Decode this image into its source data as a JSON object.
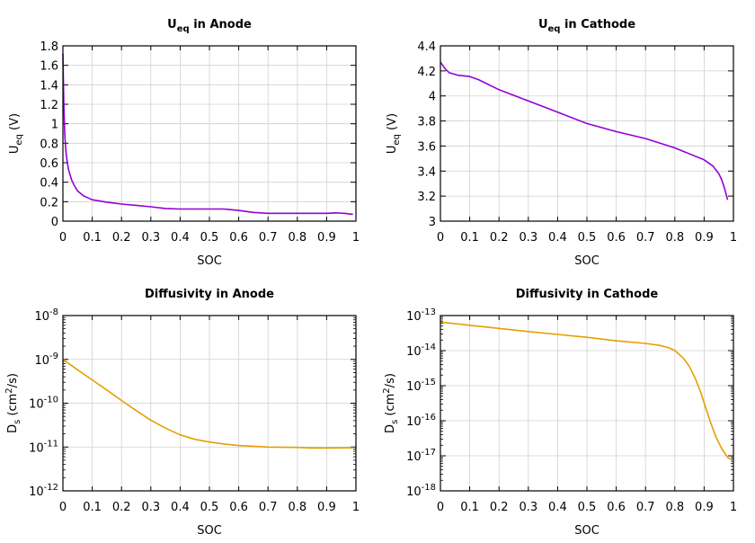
{
  "chart_data": [
    {
      "type": "line",
      "title": {
        "main": "U",
        "sub": "eq",
        "rest": " in Anode"
      },
      "xlabel": "SOC",
      "ylabel": {
        "main": "U",
        "sub": "eq",
        "rest": " (V)"
      },
      "xlim": [
        0,
        1
      ],
      "ylim": [
        0,
        1.8
      ],
      "yscale": "linear",
      "grid": true,
      "xticks": [
        "0",
        "0.1",
        "0.2",
        "0.3",
        "0.4",
        "0.5",
        "0.6",
        "0.7",
        "0.8",
        "0.9",
        "1"
      ],
      "yticks": [
        "0",
        "0.2",
        "0.4",
        "0.6",
        "0.8",
        "1",
        "1.2",
        "1.4",
        "1.6",
        "1.8"
      ],
      "color": "#9400d3",
      "x": [
        0,
        0.003,
        0.006,
        0.01,
        0.015,
        0.02,
        0.03,
        0.04,
        0.05,
        0.07,
        0.1,
        0.15,
        0.2,
        0.25,
        0.3,
        0.35,
        0.4,
        0.45,
        0.5,
        0.55,
        0.6,
        0.65,
        0.7,
        0.8,
        0.9,
        0.93,
        0.96,
        0.99
      ],
      "y": [
        1.72,
        1.2,
        0.9,
        0.72,
        0.6,
        0.52,
        0.42,
        0.36,
        0.31,
        0.26,
        0.22,
        0.195,
        0.175,
        0.162,
        0.148,
        0.13,
        0.125,
        0.125,
        0.125,
        0.125,
        0.11,
        0.09,
        0.08,
        0.08,
        0.08,
        0.085,
        0.08,
        0.07
      ]
    },
    {
      "type": "line",
      "title": {
        "main": "U",
        "sub": "eq",
        "rest": " in Cathode"
      },
      "xlabel": "SOC",
      "ylabel": {
        "main": "U",
        "sub": "eq",
        "rest": " (V)"
      },
      "xlim": [
        0,
        1
      ],
      "ylim": [
        3,
        4.4
      ],
      "yscale": "linear",
      "grid": true,
      "xticks": [
        "0",
        "0.1",
        "0.2",
        "0.3",
        "0.4",
        "0.5",
        "0.6",
        "0.7",
        "0.8",
        "0.9",
        "1"
      ],
      "yticks": [
        "3",
        "3.2",
        "3.4",
        "3.6",
        "3.8",
        "4",
        "4.2",
        "4.4"
      ],
      "color": "#9400d3",
      "x": [
        0,
        0.015,
        0.03,
        0.06,
        0.1,
        0.13,
        0.2,
        0.3,
        0.4,
        0.5,
        0.6,
        0.7,
        0.8,
        0.9,
        0.93,
        0.95,
        0.96,
        0.97,
        0.98
      ],
      "y": [
        4.27,
        4.22,
        4.185,
        4.165,
        4.155,
        4.13,
        4.05,
        3.96,
        3.87,
        3.78,
        3.715,
        3.66,
        3.585,
        3.49,
        3.44,
        3.38,
        3.33,
        3.26,
        3.17
      ]
    },
    {
      "type": "line",
      "title": {
        "main": "Diffusivity in Anode",
        "sub": "",
        "rest": ""
      },
      "xlabel": "SOC",
      "ylabel": {
        "main": "D",
        "sub": "s",
        "rest": " (cm",
        "sup": "2",
        "rest2": "/s)"
      },
      "xlim": [
        0,
        1
      ],
      "ylim": [
        1e-12,
        1e-08
      ],
      "yscale": "log",
      "grid": true,
      "xticks": [
        "0",
        "0.1",
        "0.2",
        "0.3",
        "0.4",
        "0.5",
        "0.6",
        "0.7",
        "0.8",
        "0.9",
        "1"
      ],
      "yticks": [
        {
          "base": "10",
          "exp": "-12"
        },
        {
          "base": "10",
          "exp": "-11"
        },
        {
          "base": "10",
          "exp": "-10"
        },
        {
          "base": "10",
          "exp": "-9"
        },
        {
          "base": "10",
          "exp": "-8"
        }
      ],
      "color": "#e69f00",
      "x": [
        0,
        0.05,
        0.1,
        0.15,
        0.2,
        0.25,
        0.3,
        0.35,
        0.4,
        0.45,
        0.5,
        0.55,
        0.6,
        0.7,
        0.8,
        0.85,
        0.9,
        0.99
      ],
      "y": [
        1e-09,
        5.8e-10,
        3.4e-10,
        2e-10,
        1.15e-10,
        6.8e-11,
        4.1e-11,
        2.7e-11,
        1.9e-11,
        1.5e-11,
        1.3e-11,
        1.17e-11,
        1.08e-11,
        1e-11,
        9.8e-12,
        9.5e-12,
        9.5e-12,
        9.6e-12
      ]
    },
    {
      "type": "line",
      "title": {
        "main": "Diffusivity in Cathode",
        "sub": "",
        "rest": ""
      },
      "xlabel": "SOC",
      "ylabel": {
        "main": "D",
        "sub": "s",
        "rest": " (cm",
        "sup": "2",
        "rest2": "/s)"
      },
      "xlim": [
        0,
        1
      ],
      "ylim": [
        1e-18,
        1e-13
      ],
      "yscale": "log",
      "grid": true,
      "xticks": [
        "0",
        "0.1",
        "0.2",
        "0.3",
        "0.4",
        "0.5",
        "0.6",
        "0.7",
        "0.8",
        "0.9",
        "1"
      ],
      "yticks": [
        {
          "base": "10",
          "exp": "-18"
        },
        {
          "base": "10",
          "exp": "-17"
        },
        {
          "base": "10",
          "exp": "-16"
        },
        {
          "base": "10",
          "exp": "-15"
        },
        {
          "base": "10",
          "exp": "-14"
        },
        {
          "base": "10",
          "exp": "-13"
        }
      ],
      "color": "#e69f00",
      "x": [
        0,
        0.1,
        0.2,
        0.3,
        0.4,
        0.5,
        0.6,
        0.7,
        0.75,
        0.78,
        0.8,
        0.83,
        0.85,
        0.87,
        0.89,
        0.9,
        0.92,
        0.94,
        0.96,
        0.98,
        0.99
      ],
      "y": [
        6.5e-14,
        5.3e-14,
        4.3e-14,
        3.5e-14,
        2.9e-14,
        2.4e-14,
        1.9e-14,
        1.6e-14,
        1.4e-14,
        1.2e-14,
        1e-14,
        6e-15,
        3.5e-15,
        1.6e-15,
        6e-16,
        3.2e-16,
        1e-16,
        3.5e-17,
        1.6e-17,
        9e-18,
        8e-18
      ]
    }
  ]
}
